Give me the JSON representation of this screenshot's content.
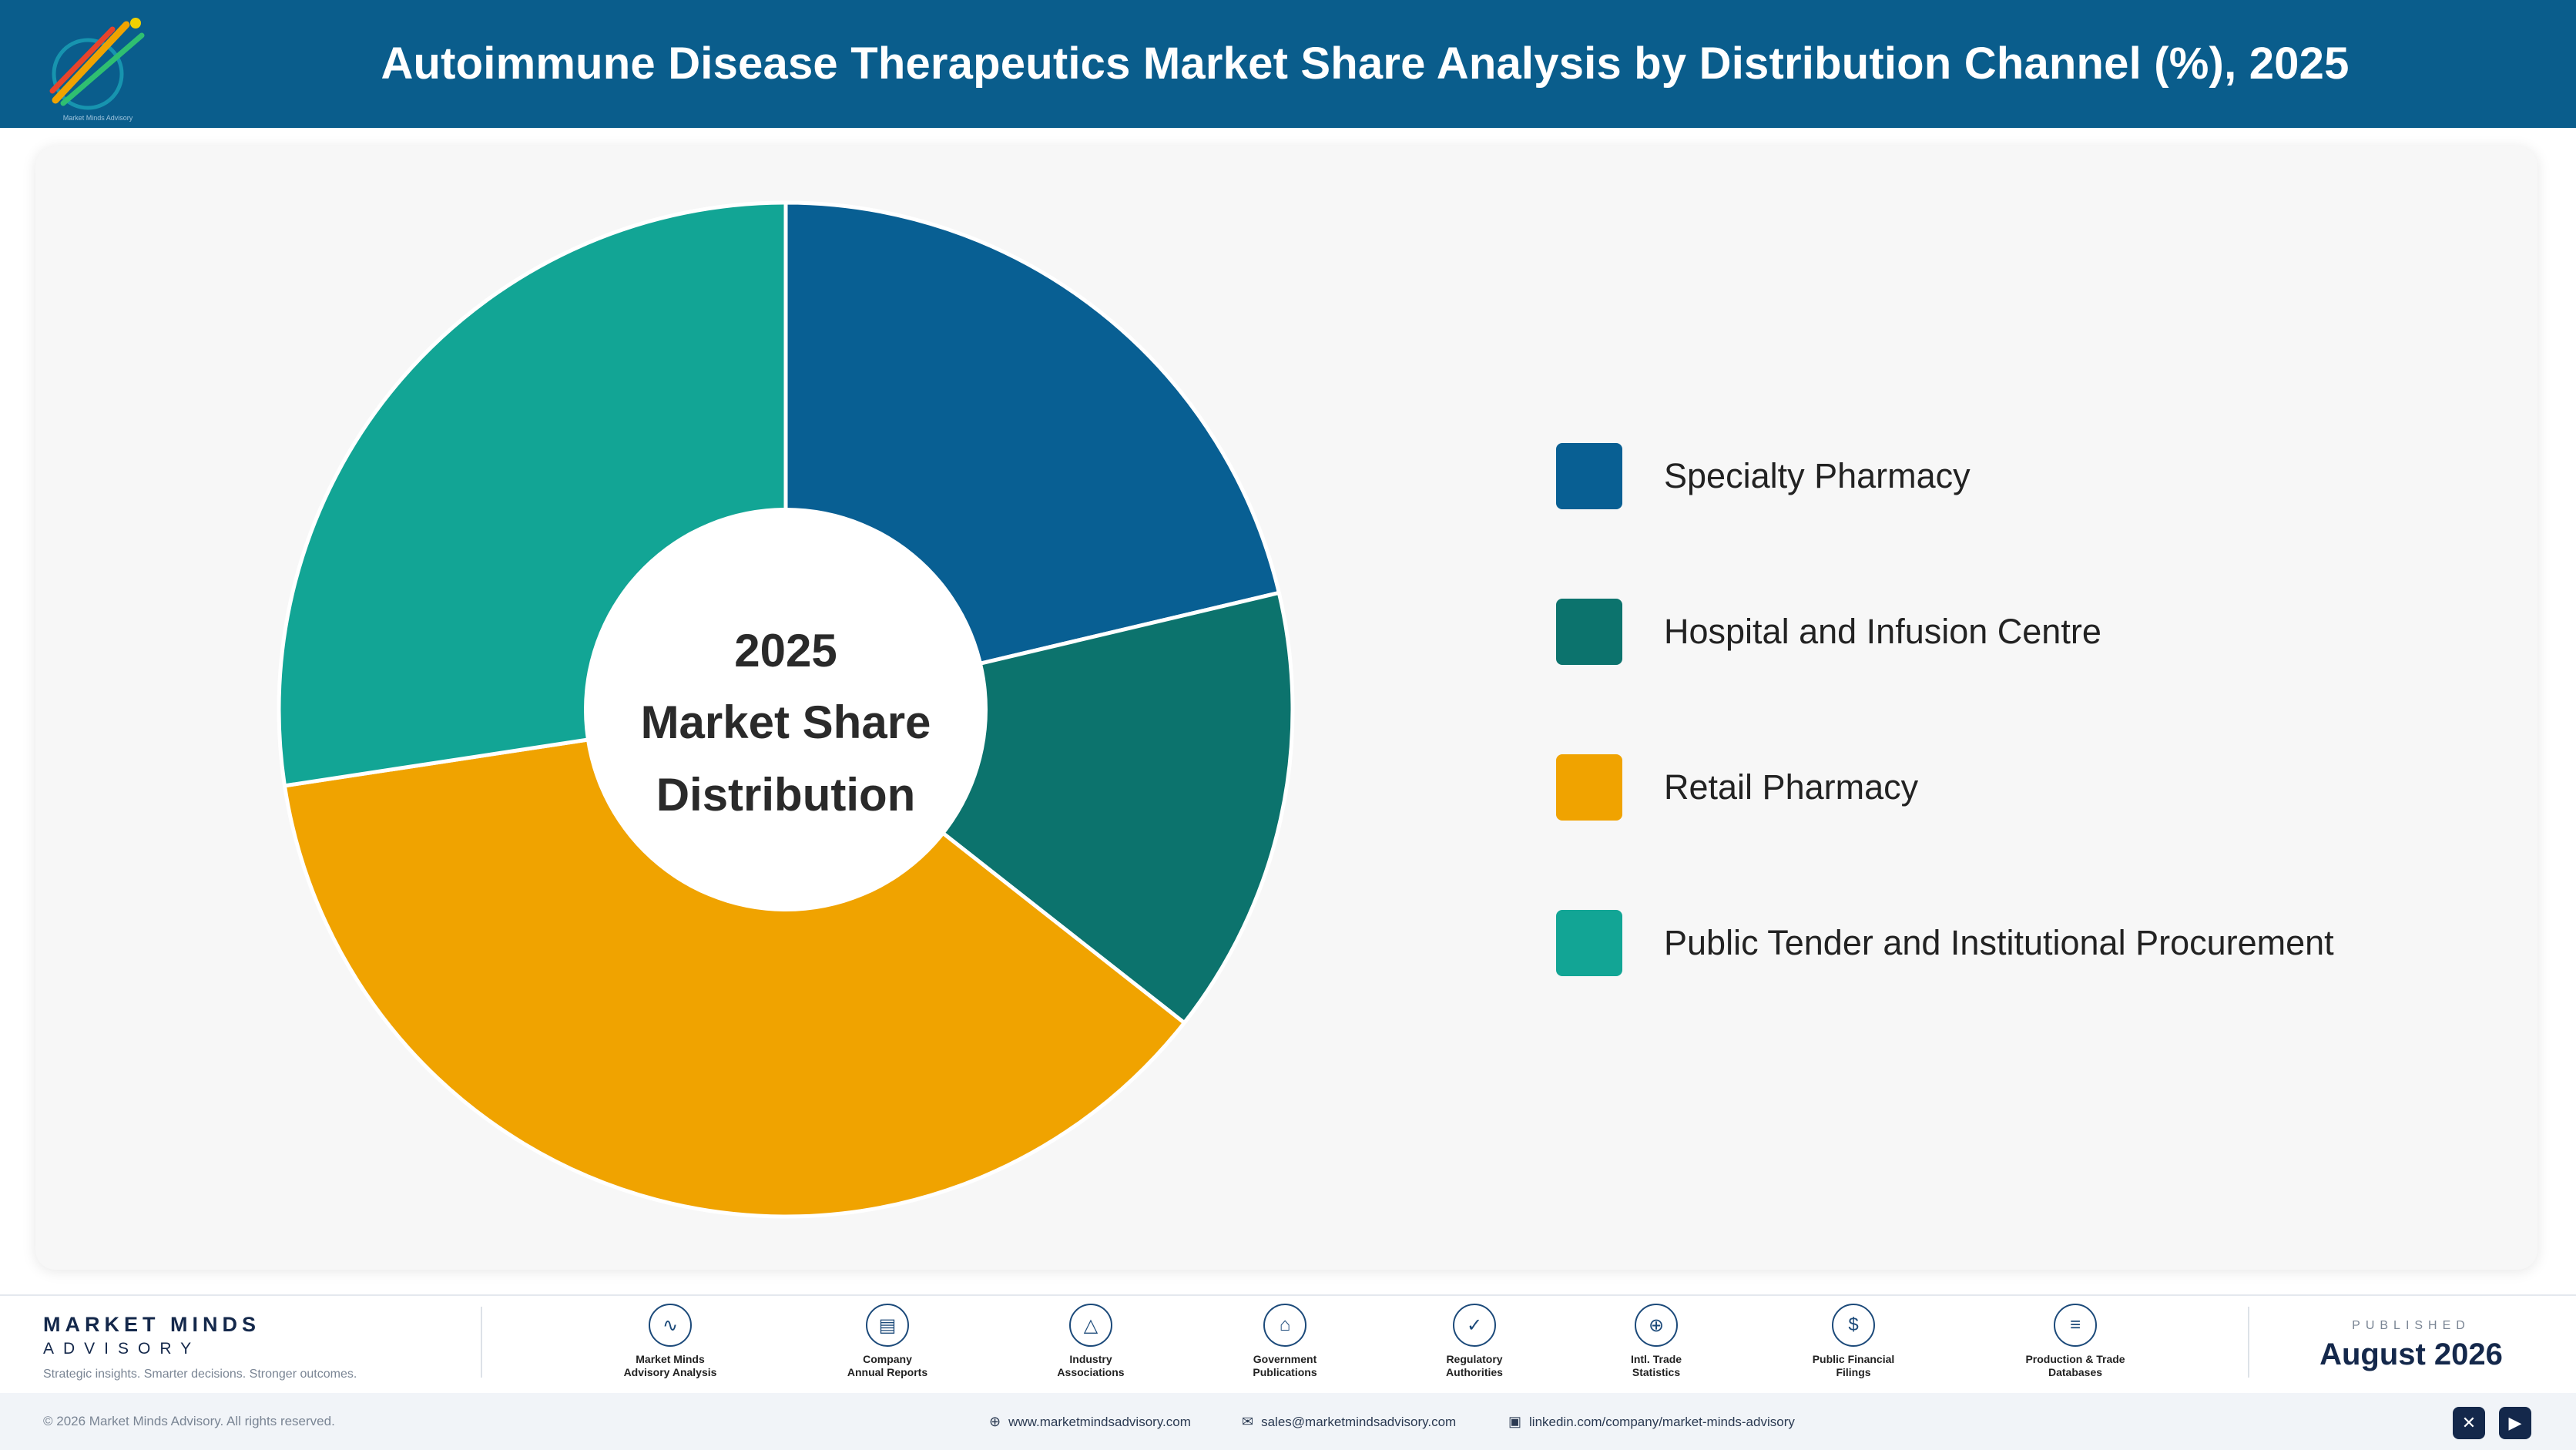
{
  "header": {
    "title": "Autoimmune Disease Therapeutics Market Share Analysis by Distribution Channel (%), 2025",
    "logo_icon": "market-minds-logo-icon"
  },
  "chart_data": {
    "type": "pie",
    "style": "donut",
    "title": "Autoimmune Disease Therapeutics Market Share Analysis by Distribution Channel (%), 2025",
    "center_label": [
      "2025",
      "Market Share",
      "Distribution"
    ],
    "legend_placement": "right",
    "start_angle_deg": 0,
    "direction": "clockwise",
    "slices": [
      {
        "label": "Specialty Pharmacy",
        "value": 21.3,
        "color": "#085f93"
      },
      {
        "label": "Hospital and Infusion Centre",
        "value": 14.3,
        "color": "#0c736d"
      },
      {
        "label": "Retail Pharmacy",
        "value": 37.0,
        "color": "#f0a300"
      },
      {
        "label": "Public Tender and Institutional Procurement",
        "value": 27.4,
        "color": "#12a595"
      }
    ]
  },
  "footer": {
    "brand_name": "MARKET MINDS",
    "brand_sub": "ADVISORY",
    "tagline": "Strategic insights. Smarter decisions. Stronger outcomes.",
    "sources": [
      {
        "label": "Market Minds\nAdvisory Analysis",
        "icon": "trend-chart-icon",
        "glyph": "∿"
      },
      {
        "label": "Company\nAnnual Reports",
        "icon": "document-icon",
        "glyph": "▤"
      },
      {
        "label": "Industry\nAssociations",
        "icon": "network-icon",
        "glyph": "△"
      },
      {
        "label": "Government\nPublications",
        "icon": "government-building-icon",
        "glyph": "⌂"
      },
      {
        "label": "Regulatory\nAuthorities",
        "icon": "shield-check-icon",
        "glyph": "✓"
      },
      {
        "label": "Intl. Trade\nStatistics",
        "icon": "globe-icon",
        "glyph": "⊕"
      },
      {
        "label": "Public Financial\nFilings",
        "icon": "coin-icon",
        "glyph": "$"
      },
      {
        "label": "Production & Trade\nDatabases",
        "icon": "database-icon",
        "glyph": "≡"
      }
    ],
    "published_label": "PUBLISHED",
    "published_date": "August 2026"
  },
  "bottom_bar": {
    "copyright": "© 2026 Market Minds Advisory. All rights reserved.",
    "website": "www.marketmindsadvisory.com",
    "email": "sales@marketmindsadvisory.com",
    "linkedin": "linkedin.com/company/market-minds-advisory",
    "social_icons": [
      "x-icon",
      "youtube-icon"
    ]
  }
}
